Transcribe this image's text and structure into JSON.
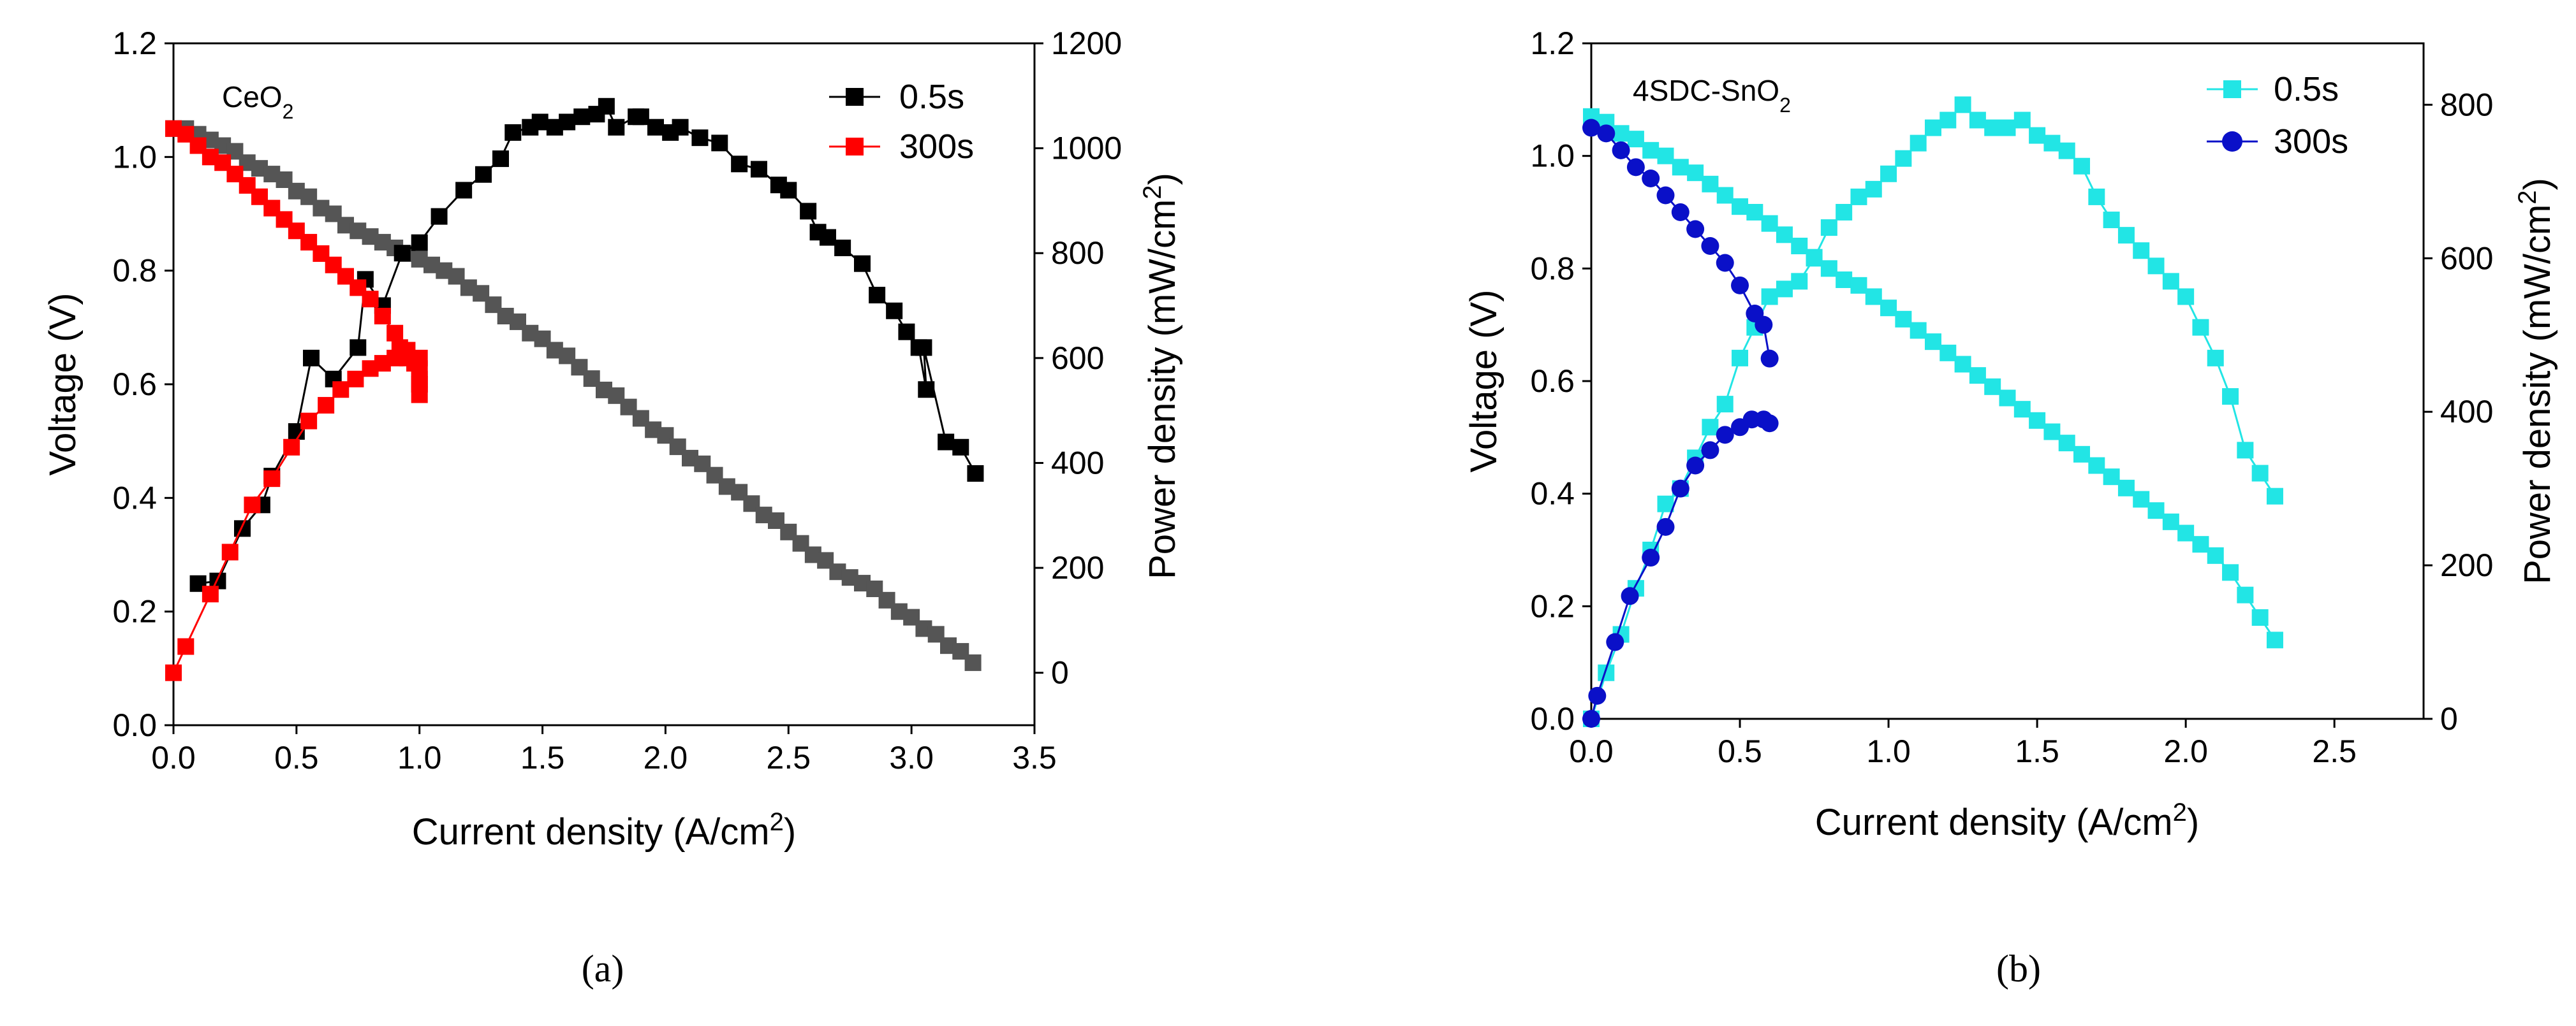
{
  "figure": {
    "caption_a": "(a)",
    "caption_b": "(b)"
  },
  "chart_data": [
    {
      "type": "line",
      "panel": "a",
      "annotation": {
        "base": "CeO",
        "sub": "2"
      },
      "xlabel": {
        "base": "Current density (A/cm",
        "sup": "2",
        "tail": ")"
      },
      "ylabel": "Voltage (V)",
      "y2label": {
        "base": "Power density (mW/cm",
        "sup": "2",
        "tail": ")"
      },
      "xlim": [
        0,
        3.5
      ],
      "ylim": [
        0,
        1.2
      ],
      "y2lim": [
        -100,
        1200
      ],
      "xticks": [
        "0.0",
        "0.5",
        "1.0",
        "1.5",
        "2.0",
        "2.5",
        "3.0",
        "3.5"
      ],
      "yticks": [
        "0.0",
        "0.2",
        "0.4",
        "0.6",
        "0.8",
        "1.0",
        "1.2"
      ],
      "y2ticks": [
        "0",
        "200",
        "400",
        "600",
        "800",
        "1000",
        "1200"
      ],
      "xtick_values": [
        0,
        0.5,
        1,
        1.5,
        2,
        2.5,
        3,
        3.5
      ],
      "ytick_values": [
        0,
        0.2,
        0.4,
        0.6,
        0.8,
        1.0,
        1.2
      ],
      "y2tick_values": [
        0,
        200,
        400,
        600,
        800,
        1000,
        1200
      ],
      "legend_position": "top-right",
      "legend": [
        {
          "label": "0.5s",
          "color": "#000000",
          "marker": "square"
        },
        {
          "label": "300s",
          "color": "#ff0000",
          "marker": "square"
        }
      ],
      "series": [
        {
          "name": "0.5s voltage",
          "axis": "left",
          "color": "#555555",
          "marker": "square",
          "line": false,
          "x": [
            0.0,
            0.05,
            0.1,
            0.15,
            0.2,
            0.25,
            0.3,
            0.35,
            0.4,
            0.45,
            0.5,
            0.55,
            0.6,
            0.65,
            0.7,
            0.75,
            0.8,
            0.85,
            0.9,
            0.95,
            1.0,
            1.05,
            1.1,
            1.15,
            1.2,
            1.25,
            1.3,
            1.35,
            1.4,
            1.45,
            1.5,
            1.55,
            1.6,
            1.65,
            1.7,
            1.75,
            1.8,
            1.85,
            1.9,
            1.95,
            2.0,
            2.05,
            2.1,
            2.15,
            2.2,
            2.25,
            2.3,
            2.35,
            2.4,
            2.45,
            2.5,
            2.55,
            2.6,
            2.65,
            2.7,
            2.75,
            2.8,
            2.85,
            2.9,
            2.95,
            3.0,
            3.05,
            3.1,
            3.15,
            3.2,
            3.25
          ],
          "y": [
            1.05,
            1.05,
            1.04,
            1.03,
            1.02,
            1.01,
            0.99,
            0.98,
            0.97,
            0.96,
            0.94,
            0.93,
            0.91,
            0.9,
            0.88,
            0.87,
            0.86,
            0.85,
            0.84,
            0.83,
            0.82,
            0.81,
            0.8,
            0.79,
            0.77,
            0.76,
            0.74,
            0.72,
            0.71,
            0.69,
            0.68,
            0.66,
            0.65,
            0.63,
            0.61,
            0.59,
            0.58,
            0.56,
            0.54,
            0.52,
            0.51,
            0.49,
            0.47,
            0.46,
            0.44,
            0.42,
            0.41,
            0.39,
            0.37,
            0.36,
            0.34,
            0.32,
            0.3,
            0.29,
            0.27,
            0.26,
            0.25,
            0.24,
            0.22,
            0.2,
            0.19,
            0.17,
            0.16,
            0.14,
            0.13,
            0.11
          ]
        },
        {
          "name": "0.5s power",
          "axis": "right",
          "color": "#000000",
          "marker": "square",
          "line": true,
          "x": [
            0.1,
            0.18,
            0.28,
            0.36,
            0.4,
            0.5,
            0.56,
            0.65,
            0.75,
            0.78,
            0.85,
            0.93,
            1.0,
            1.08,
            1.18,
            1.26,
            1.33,
            1.38,
            1.45,
            1.49,
            1.55,
            1.6,
            1.66,
            1.72,
            1.76,
            1.8,
            1.88,
            1.9,
            1.96,
            2.02,
            2.06,
            2.14,
            2.22,
            2.3,
            2.38,
            2.46,
            2.5,
            2.58,
            2.62,
            2.66,
            2.72,
            2.8,
            2.86,
            2.93,
            2.98,
            3.03,
            3.06,
            3.05,
            3.14,
            3.2,
            3.26
          ],
          "y": [
            170,
            175,
            275,
            320,
            375,
            460,
            600,
            560,
            620,
            750,
            700,
            800,
            820,
            870,
            920,
            950,
            980,
            1030,
            1040,
            1050,
            1040,
            1050,
            1060,
            1065,
            1080,
            1040,
            1060,
            1060,
            1040,
            1030,
            1040,
            1020,
            1010,
            970,
            960,
            930,
            920,
            880,
            840,
            830,
            810,
            780,
            720,
            690,
            650,
            620,
            540,
            620,
            440,
            430,
            380
          ]
        },
        {
          "name": "300s voltage",
          "axis": "left",
          "color": "#ff0000",
          "marker": "square",
          "line": true,
          "x": [
            0.0,
            0.05,
            0.1,
            0.15,
            0.2,
            0.25,
            0.3,
            0.35,
            0.4,
            0.45,
            0.5,
            0.55,
            0.6,
            0.65,
            0.7,
            0.75,
            0.8,
            0.85,
            0.9,
            0.95,
            1.0
          ],
          "y": [
            1.05,
            1.04,
            1.02,
            1.0,
            0.99,
            0.97,
            0.95,
            0.93,
            0.91,
            0.89,
            0.87,
            0.85,
            0.83,
            0.81,
            0.79,
            0.77,
            0.75,
            0.72,
            0.69,
            0.66,
            0.6
          ]
        },
        {
          "name": "300s power",
          "axis": "right",
          "color": "#ff0000",
          "marker": "square",
          "line": true,
          "x": [
            0.0,
            0.05,
            0.15,
            0.23,
            0.32,
            0.4,
            0.48,
            0.55,
            0.62,
            0.68,
            0.74,
            0.8,
            0.85,
            0.9,
            0.92,
            0.95,
            0.98,
            1.0,
            1.0,
            1.0,
            1.0,
            1.0
          ],
          "y": [
            0,
            50,
            150,
            230,
            320,
            370,
            430,
            480,
            510,
            540,
            560,
            580,
            590,
            600,
            620,
            600,
            590,
            600,
            580,
            560,
            550,
            530
          ]
        }
      ]
    },
    {
      "type": "line",
      "panel": "b",
      "annotation": {
        "base": "4SDC-SnO",
        "sub": "2"
      },
      "xlabel": {
        "base": "Current density (A/cm",
        "sup": "2",
        "tail": ")"
      },
      "ylabel": "Voltage (V)",
      "y2label": {
        "base": "Power density (mW/cm",
        "sup": "2",
        "tail": ")"
      },
      "xlim": [
        0,
        2.8
      ],
      "ylim": [
        0,
        1.2
      ],
      "y2lim": [
        0,
        880
      ],
      "xticks": [
        "0.0",
        "0.5",
        "1.0",
        "1.5",
        "2.0",
        "2.5"
      ],
      "yticks": [
        "0.0",
        "0.2",
        "0.4",
        "0.6",
        "0.8",
        "1.0",
        "1.2"
      ],
      "y2ticks": [
        "0",
        "200",
        "400",
        "600",
        "800"
      ],
      "xtick_values": [
        0,
        0.5,
        1,
        1.5,
        2,
        2.5
      ],
      "ytick_values": [
        0,
        0.2,
        0.4,
        0.6,
        0.8,
        1.0,
        1.2
      ],
      "y2tick_values": [
        0,
        200,
        400,
        600,
        800
      ],
      "legend_position": "top-right",
      "legend": [
        {
          "label": "0.5s",
          "color": "#22e5e5",
          "marker": "square"
        },
        {
          "label": "300s",
          "color": "#0a10c8",
          "marker": "circle"
        }
      ],
      "series": [
        {
          "name": "0.5s voltage",
          "axis": "left",
          "color": "#22e5e5",
          "marker": "square",
          "line": true,
          "x": [
            0.0,
            0.05,
            0.1,
            0.15,
            0.2,
            0.25,
            0.3,
            0.35,
            0.4,
            0.45,
            0.5,
            0.55,
            0.6,
            0.65,
            0.7,
            0.75,
            0.8,
            0.85,
            0.9,
            0.95,
            1.0,
            1.05,
            1.1,
            1.15,
            1.2,
            1.25,
            1.3,
            1.35,
            1.4,
            1.45,
            1.5,
            1.55,
            1.6,
            1.65,
            1.7,
            1.75,
            1.8,
            1.85,
            1.9,
            1.95,
            2.0,
            2.05,
            2.1,
            2.15,
            2.2,
            2.25,
            2.3
          ],
          "y": [
            1.07,
            1.06,
            1.04,
            1.03,
            1.01,
            1.0,
            0.98,
            0.97,
            0.95,
            0.93,
            0.91,
            0.9,
            0.88,
            0.86,
            0.84,
            0.82,
            0.8,
            0.78,
            0.77,
            0.75,
            0.73,
            0.71,
            0.69,
            0.67,
            0.65,
            0.63,
            0.61,
            0.59,
            0.57,
            0.55,
            0.53,
            0.51,
            0.49,
            0.47,
            0.45,
            0.43,
            0.41,
            0.39,
            0.37,
            0.35,
            0.33,
            0.31,
            0.29,
            0.26,
            0.22,
            0.18,
            0.14
          ]
        },
        {
          "name": "0.5s power",
          "axis": "right",
          "color": "#22e5e5",
          "marker": "square",
          "line": true,
          "x": [
            0.0,
            0.05,
            0.1,
            0.15,
            0.2,
            0.25,
            0.3,
            0.35,
            0.4,
            0.45,
            0.5,
            0.55,
            0.6,
            0.65,
            0.7,
            0.75,
            0.8,
            0.85,
            0.9,
            0.95,
            1.0,
            1.05,
            1.1,
            1.15,
            1.2,
            1.25,
            1.3,
            1.35,
            1.4,
            1.45,
            1.5,
            1.55,
            1.6,
            1.65,
            1.7,
            1.75,
            1.8,
            1.85,
            1.9,
            1.95,
            2.0,
            2.05,
            2.1,
            2.15,
            2.2,
            2.25,
            2.3
          ],
          "y": [
            0,
            60,
            110,
            170,
            220,
            280,
            300,
            340,
            380,
            410,
            470,
            510,
            550,
            560,
            570,
            600,
            640,
            660,
            680,
            690,
            710,
            730,
            750,
            770,
            780,
            800,
            780,
            770,
            770,
            780,
            760,
            750,
            740,
            720,
            680,
            650,
            630,
            610,
            590,
            570,
            550,
            510,
            470,
            420,
            350,
            320,
            290
          ]
        },
        {
          "name": "300s voltage",
          "axis": "left",
          "color": "#0a10c8",
          "marker": "circle",
          "line": true,
          "x": [
            0.0,
            0.05,
            0.1,
            0.15,
            0.2,
            0.25,
            0.3,
            0.35,
            0.4,
            0.45,
            0.5,
            0.55,
            0.58,
            0.6
          ],
          "y": [
            1.05,
            1.04,
            1.01,
            0.98,
            0.96,
            0.93,
            0.9,
            0.87,
            0.84,
            0.81,
            0.77,
            0.72,
            0.7,
            0.64
          ]
        },
        {
          "name": "300s power",
          "axis": "right",
          "color": "#0a10c8",
          "marker": "circle",
          "line": true,
          "x": [
            0.0,
            0.02,
            0.08,
            0.13,
            0.2,
            0.25,
            0.3,
            0.35,
            0.4,
            0.45,
            0.5,
            0.54,
            0.58,
            0.6
          ],
          "y": [
            0,
            30,
            100,
            160,
            210,
            250,
            300,
            330,
            350,
            370,
            380,
            390,
            390,
            385
          ]
        }
      ]
    }
  ]
}
